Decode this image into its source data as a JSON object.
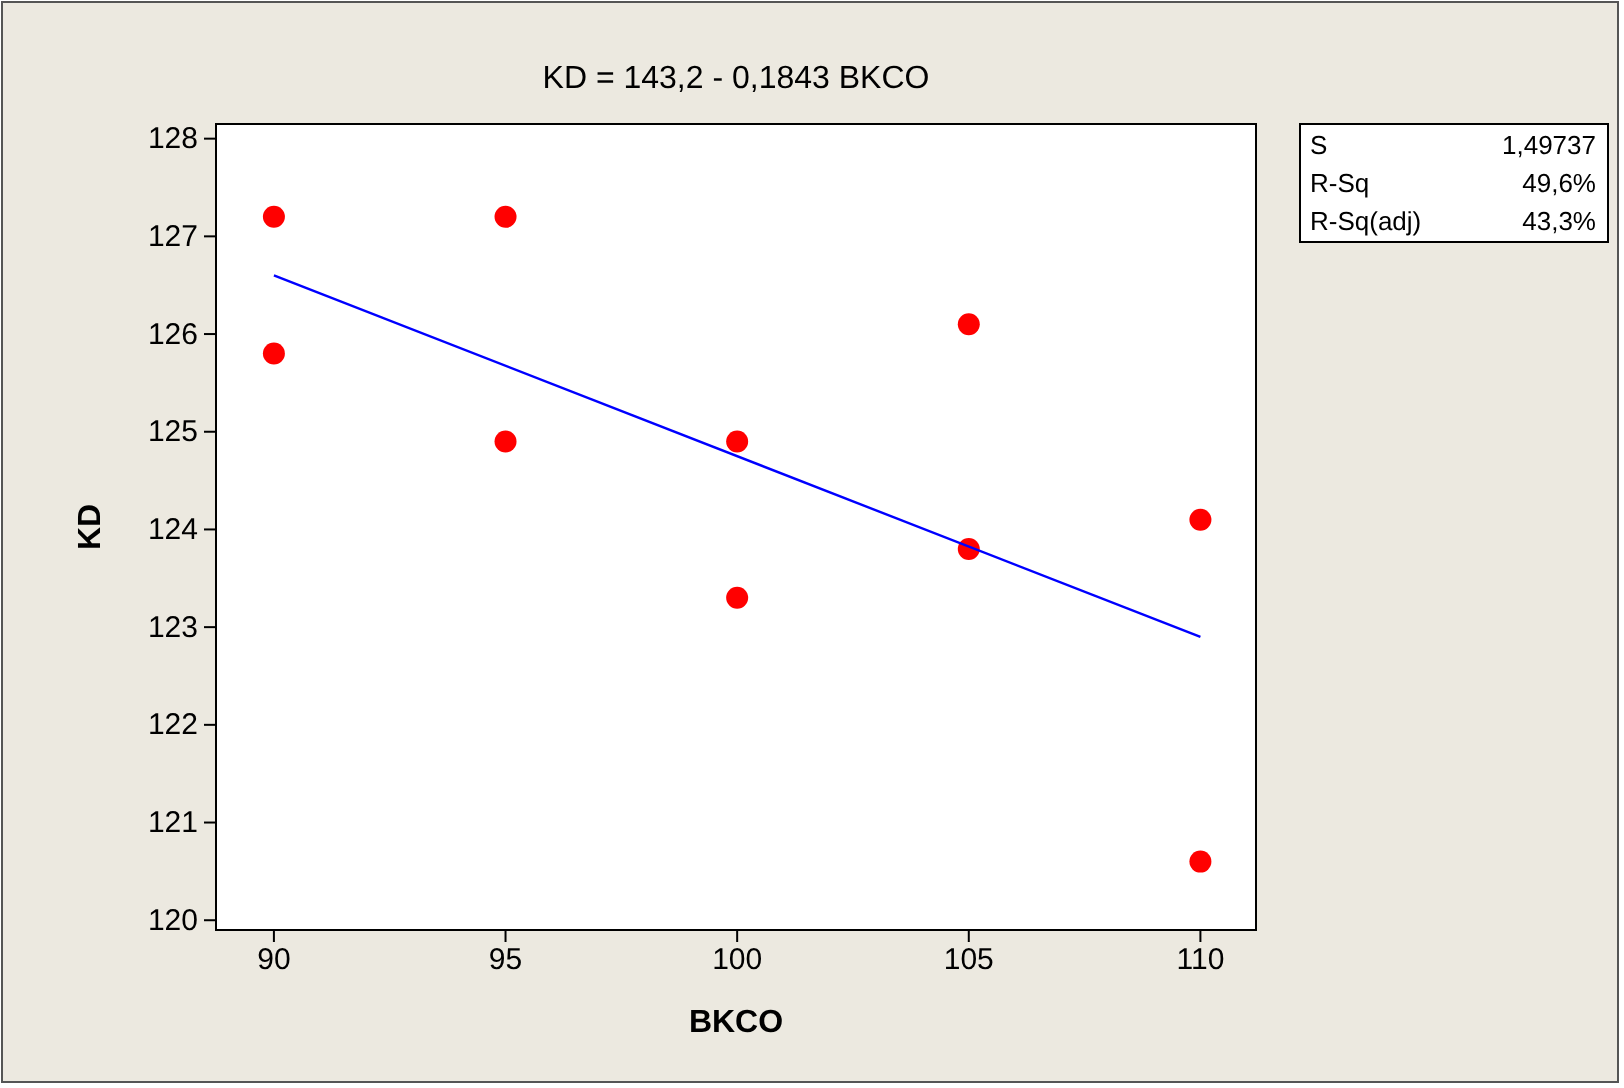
{
  "chart_data": {
    "type": "scatter",
    "title": "KD =  143,2 - 0,1843 BKCO",
    "xlabel": "BKCO",
    "ylabel": "KD",
    "xlim": [
      88.75,
      111.2
    ],
    "xticks": [
      90,
      95,
      100,
      105,
      110
    ],
    "ylim": [
      119.9,
      128.15
    ],
    "yticks": [
      120,
      121,
      122,
      123,
      124,
      125,
      126,
      127,
      128
    ],
    "grid": false,
    "marker": "circle",
    "series": [
      {
        "color": "#ff0000",
        "x": [
          90,
          90,
          95,
          95,
          100,
          100,
          105,
          105,
          110,
          110
        ],
        "values": [
          127.2,
          125.8,
          127.2,
          124.9,
          124.9,
          123.3,
          126.1,
          123.8,
          124.1,
          120.6
        ]
      },
      {
        "type": "line",
        "color": "#0000ff",
        "marker": "none",
        "line_style": "solid",
        "x": [
          90,
          110
        ],
        "values": [
          126.6,
          122.9
        ]
      }
    ],
    "annotations": [
      "S 1,49737",
      "R-Sq 49,6%",
      "R-Sq(adj) 43,3%"
    ]
  }
}
